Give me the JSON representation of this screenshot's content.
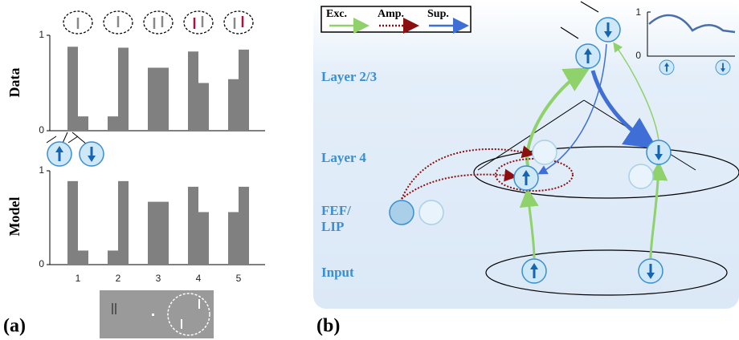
{
  "chart_data": [
    {
      "type": "bar",
      "y_label": "Data",
      "categories": [
        null,
        null,
        null,
        null,
        null
      ],
      "series": [
        {
          "color": "#808080",
          "values": [
            0.88,
            0.15,
            0.66,
            0.83,
            0.54
          ]
        },
        {
          "color": "#808080",
          "values": [
            0.15,
            0.87,
            0.66,
            0.5,
            0.85
          ]
        }
      ],
      "ylim": [
        0,
        1
      ],
      "yticks": [
        0,
        1
      ]
    },
    {
      "type": "bar",
      "y_label": "Model",
      "categories": [
        "1",
        "2",
        "3",
        "4",
        "5"
      ],
      "series": [
        {
          "color": "#808080",
          "values": [
            0.89,
            0.15,
            0.67,
            0.83,
            0.56
          ]
        },
        {
          "color": "#808080",
          "values": [
            0.15,
            0.89,
            0.67,
            0.56,
            0.83
          ]
        }
      ],
      "ylim": [
        0,
        1
      ],
      "yticks": [
        0,
        1
      ]
    }
  ],
  "panels": [
    "(a)",
    "(b)"
  ],
  "legend": [
    "Exc.",
    "Amp.",
    "Sup."
  ],
  "layers": [
    "Layer 2/3",
    "Layer 4",
    "FEF/",
    "LIP",
    "Input"
  ],
  "inset_ticks": [
    "1",
    "0"
  ]
}
